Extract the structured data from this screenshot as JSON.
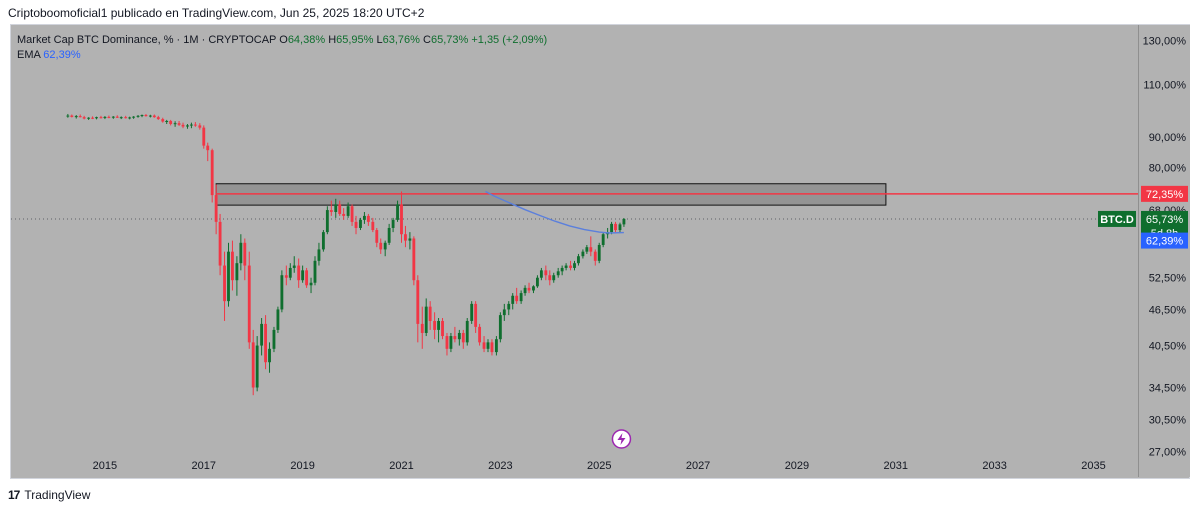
{
  "caption": "Criptoboomoficial1 publicado en TradingView.com, Jun 25, 2025 18:20 UTC+2",
  "legend": {
    "symbol": "Market Cap BTC Dominance, % · 1M · CRYPTOCAP",
    "o_label": "O",
    "o_value": "64,38%",
    "h_label": "H",
    "h_value": "65,95%",
    "l_label": "L",
    "l_value": "63,76%",
    "c_label": "C",
    "c_value": "65,73%",
    "change": "+1,35 (+2,09%)",
    "ema_label": "EMA",
    "ema_value": "62,39%"
  },
  "logo_text": "TradingView",
  "colors": {
    "background": "#b2b2b2",
    "up": "#0f6e2e",
    "down": "#f23645",
    "ema": "#5b7fdc",
    "resistance_line": "#f23645",
    "ema_badge": "#2962ff"
  },
  "badges": {
    "resistance": "72,35%",
    "symbol": "BTC.D",
    "price": "65,73%",
    "countdown": "5d 8h",
    "ema": "62,39%"
  },
  "chart_data": {
    "type": "candlestick",
    "title": "Market Cap BTC Dominance, % · 1M · CRYPTOCAP",
    "x_ticks": [
      "2015",
      "2017",
      "2019",
      "2021",
      "2023",
      "2025",
      "2027",
      "2029",
      "2031",
      "2033",
      "2035"
    ],
    "y_ticks": [
      "130,00%",
      "110,00%",
      "90,00%",
      "80,00%",
      "68,00%",
      "52,50%",
      "46,50%",
      "40,50%",
      "34,50%",
      "30,50%",
      "27,00%"
    ],
    "y_tick_values": [
      130,
      110,
      90,
      80,
      68,
      52.5,
      46.5,
      40.5,
      34.5,
      30.5,
      27
    ],
    "y_scale": "log",
    "xlim": [
      2013.1,
      2035.9
    ],
    "ylim": [
      24.5,
      138
    ],
    "resistance_zone": {
      "x_start": 2017.25,
      "x_end": 2030.8,
      "y_low": 69.3,
      "y_high": 75.2
    },
    "resistance_level": 72.35,
    "last_price": 65.73,
    "series": [
      {
        "name": "BTC.D",
        "candles": [
          [
            2014.25,
            97.5,
            98.2,
            96.8,
            97.6
          ],
          [
            2014.33,
            97.6,
            98.0,
            96.9,
            97.1
          ],
          [
            2014.42,
            97.1,
            97.8,
            96.5,
            97.4
          ],
          [
            2014.5,
            97.4,
            98.0,
            96.9,
            97.0
          ],
          [
            2014.58,
            97.0,
            97.5,
            96.2,
            96.5
          ],
          [
            2014.67,
            96.5,
            97.0,
            96.0,
            96.8
          ],
          [
            2014.75,
            96.8,
            97.3,
            96.3,
            96.6
          ],
          [
            2014.83,
            96.6,
            97.2,
            96.2,
            97.0
          ],
          [
            2014.92,
            97.0,
            97.5,
            96.5,
            96.8
          ],
          [
            2015.0,
            96.8,
            97.4,
            96.3,
            97.1
          ],
          [
            2015.08,
            97.1,
            97.6,
            96.6,
            96.9
          ],
          [
            2015.17,
            96.9,
            97.4,
            96.4,
            97.2
          ],
          [
            2015.25,
            97.2,
            97.7,
            96.7,
            96.8
          ],
          [
            2015.33,
            96.8,
            97.3,
            96.3,
            97.0
          ],
          [
            2015.42,
            97.0,
            97.5,
            96.5,
            96.7
          ],
          [
            2015.5,
            96.7,
            97.2,
            96.2,
            96.9
          ],
          [
            2015.58,
            96.9,
            97.4,
            96.4,
            97.2
          ],
          [
            2015.67,
            97.2,
            97.8,
            96.8,
            97.5
          ],
          [
            2015.75,
            97.5,
            98.0,
            97.0,
            97.8
          ],
          [
            2015.83,
            97.8,
            98.2,
            97.2,
            97.4
          ],
          [
            2015.92,
            97.4,
            97.9,
            96.9,
            97.6
          ],
          [
            2016.0,
            97.6,
            98.0,
            96.8,
            97.0
          ],
          [
            2016.08,
            97.0,
            97.5,
            96.0,
            96.3
          ],
          [
            2016.17,
            96.3,
            96.8,
            95.0,
            95.4
          ],
          [
            2016.25,
            95.4,
            96.0,
            94.5,
            95.6
          ],
          [
            2016.33,
            95.6,
            96.0,
            94.0,
            94.5
          ],
          [
            2016.42,
            94.5,
            95.5,
            93.5,
            94.8
          ],
          [
            2016.5,
            94.8,
            95.6,
            93.8,
            94.2
          ],
          [
            2016.58,
            94.2,
            95.0,
            93.0,
            93.6
          ],
          [
            2016.67,
            93.6,
            94.5,
            92.8,
            94.0
          ],
          [
            2016.75,
            94.0,
            95.0,
            93.0,
            94.3
          ],
          [
            2016.83,
            94.3,
            95.2,
            93.5,
            94.0
          ],
          [
            2016.92,
            94.0,
            94.8,
            92.5,
            93.2
          ],
          [
            2017.0,
            93.2,
            94.0,
            86.0,
            87.0
          ],
          [
            2017.08,
            87.0,
            88.0,
            82.0,
            85.5
          ],
          [
            2017.17,
            85.5,
            86.0,
            70.0,
            72.0
          ],
          [
            2017.25,
            72.0,
            75.0,
            62.0,
            65.0
          ],
          [
            2017.33,
            65.0,
            67.0,
            53.0,
            55.0
          ],
          [
            2017.42,
            55.0,
            58.0,
            44.5,
            48.0
          ],
          [
            2017.5,
            48.0,
            60.0,
            47.0,
            58.0
          ],
          [
            2017.58,
            58.0,
            60.5,
            50.0,
            52.0
          ],
          [
            2017.67,
            52.0,
            57.0,
            49.0,
            55.5
          ],
          [
            2017.75,
            55.5,
            62.0,
            54.0,
            60.0
          ],
          [
            2017.83,
            60.0,
            61.0,
            52.0,
            55.0
          ],
          [
            2017.92,
            55.0,
            58.0,
            40.0,
            41.0
          ],
          [
            2018.0,
            41.0,
            43.0,
            33.5,
            34.5
          ],
          [
            2018.08,
            34.5,
            42.0,
            34.0,
            40.5
          ],
          [
            2018.17,
            40.5,
            45.0,
            39.0,
            44.0
          ],
          [
            2018.25,
            44.0,
            45.5,
            37.0,
            38.0
          ],
          [
            2018.33,
            38.0,
            41.0,
            36.5,
            40.0
          ],
          [
            2018.42,
            40.0,
            43.5,
            39.5,
            43.0
          ],
          [
            2018.5,
            43.0,
            47.0,
            42.5,
            46.5
          ],
          [
            2018.58,
            46.5,
            54.0,
            46.0,
            53.0
          ],
          [
            2018.67,
            53.0,
            55.0,
            51.0,
            52.5
          ],
          [
            2018.75,
            52.5,
            55.5,
            52.0,
            54.5
          ],
          [
            2018.83,
            54.5,
            57.0,
            53.5,
            55.0
          ],
          [
            2018.92,
            55.0,
            56.5,
            50.5,
            52.0
          ],
          [
            2019.0,
            52.0,
            55.0,
            51.5,
            54.0
          ],
          [
            2019.08,
            54.0,
            54.5,
            50.5,
            51.0
          ],
          [
            2019.17,
            51.0,
            52.5,
            49.5,
            51.5
          ],
          [
            2019.25,
            51.5,
            57.0,
            51.0,
            56.0
          ],
          [
            2019.33,
            56.0,
            60.0,
            55.0,
            58.5
          ],
          [
            2019.42,
            58.5,
            63.0,
            58.0,
            62.5
          ],
          [
            2019.5,
            62.5,
            69.0,
            62.0,
            68.0
          ],
          [
            2019.58,
            68.0,
            70.5,
            66.5,
            67.5
          ],
          [
            2019.67,
            67.5,
            71.0,
            66.0,
            69.5
          ],
          [
            2019.75,
            69.5,
            70.5,
            66.5,
            67.0
          ],
          [
            2019.83,
            67.0,
            68.5,
            65.5,
            66.5
          ],
          [
            2019.92,
            66.5,
            70.0,
            66.0,
            69.0
          ],
          [
            2020.0,
            69.0,
            69.5,
            64.0,
            65.0
          ],
          [
            2020.08,
            65.0,
            66.5,
            62.0,
            63.5
          ],
          [
            2020.17,
            63.5,
            66.0,
            63.0,
            65.5
          ],
          [
            2020.25,
            65.5,
            67.5,
            64.5,
            66.5
          ],
          [
            2020.33,
            66.5,
            67.0,
            64.0,
            65.0
          ],
          [
            2020.42,
            65.0,
            66.0,
            62.5,
            63.0
          ],
          [
            2020.5,
            63.0,
            63.5,
            59.0,
            60.0
          ],
          [
            2020.58,
            60.0,
            61.0,
            57.5,
            58.5
          ],
          [
            2020.67,
            58.5,
            60.5,
            57.0,
            60.0
          ],
          [
            2020.75,
            60.0,
            64.5,
            59.5,
            63.5
          ],
          [
            2020.83,
            63.5,
            66.0,
            62.5,
            65.5
          ],
          [
            2020.92,
            65.5,
            70.5,
            65.0,
            69.5
          ],
          [
            2021.0,
            69.5,
            73.0,
            60.0,
            62.0
          ],
          [
            2021.08,
            62.0,
            64.0,
            59.0,
            60.5
          ],
          [
            2021.17,
            60.5,
            62.5,
            58.5,
            61.0
          ],
          [
            2021.25,
            61.0,
            61.5,
            51.0,
            52.0
          ],
          [
            2021.33,
            52.0,
            53.0,
            41.0,
            44.0
          ],
          [
            2021.42,
            44.0,
            47.0,
            40.0,
            42.5
          ],
          [
            2021.5,
            42.5,
            48.5,
            42.0,
            47.0
          ],
          [
            2021.58,
            47.0,
            48.0,
            43.0,
            44.5
          ],
          [
            2021.67,
            44.5,
            46.0,
            41.5,
            43.0
          ],
          [
            2021.75,
            43.0,
            45.0,
            41.0,
            44.5
          ],
          [
            2021.83,
            44.5,
            45.0,
            41.5,
            42.0
          ],
          [
            2021.92,
            42.0,
            42.5,
            39.0,
            40.0
          ],
          [
            2022.0,
            40.0,
            42.5,
            39.5,
            42.0
          ],
          [
            2022.08,
            42.0,
            43.5,
            41.0,
            41.5
          ],
          [
            2022.17,
            41.5,
            43.0,
            40.5,
            42.5
          ],
          [
            2022.25,
            42.5,
            43.0,
            40.0,
            41.0
          ],
          [
            2022.33,
            41.0,
            45.0,
            40.5,
            44.5
          ],
          [
            2022.42,
            44.5,
            48.0,
            44.0,
            47.5
          ],
          [
            2022.5,
            47.5,
            48.0,
            42.5,
            43.5
          ],
          [
            2022.58,
            43.5,
            44.0,
            40.5,
            41.0
          ],
          [
            2022.67,
            41.0,
            42.0,
            39.5,
            40.0
          ],
          [
            2022.75,
            40.0,
            41.5,
            39.5,
            41.0
          ],
          [
            2022.83,
            41.0,
            41.5,
            39.0,
            39.5
          ],
          [
            2022.92,
            39.5,
            42.0,
            39.0,
            41.5
          ],
          [
            2023.0,
            41.5,
            46.0,
            41.0,
            45.5
          ],
          [
            2023.08,
            45.5,
            47.5,
            44.5,
            46.5
          ],
          [
            2023.17,
            46.5,
            48.0,
            45.5,
            47.5
          ],
          [
            2023.25,
            47.5,
            49.5,
            46.5,
            49.0
          ],
          [
            2023.33,
            49.0,
            50.5,
            47.5,
            48.0
          ],
          [
            2023.42,
            48.0,
            50.0,
            47.5,
            49.5
          ],
          [
            2023.5,
            49.5,
            51.0,
            49.0,
            50.5
          ],
          [
            2023.58,
            50.5,
            51.5,
            49.5,
            50.0
          ],
          [
            2023.67,
            50.0,
            51.0,
            49.5,
            50.8
          ],
          [
            2023.75,
            50.8,
            53.0,
            50.5,
            52.5
          ],
          [
            2023.83,
            52.5,
            54.5,
            52.0,
            54.0
          ],
          [
            2023.92,
            54.0,
            55.0,
            52.0,
            53.0
          ],
          [
            2024.0,
            53.0,
            54.0,
            51.0,
            52.0
          ],
          [
            2024.08,
            52.0,
            53.5,
            51.5,
            53.0
          ],
          [
            2024.17,
            53.0,
            54.5,
            52.5,
            53.8
          ],
          [
            2024.25,
            53.8,
            55.0,
            53.0,
            54.5
          ],
          [
            2024.33,
            54.5,
            55.5,
            54.0,
            55.0
          ],
          [
            2024.42,
            55.0,
            56.0,
            54.0,
            54.5
          ],
          [
            2024.5,
            54.5,
            56.0,
            54.0,
            55.5
          ],
          [
            2024.58,
            55.5,
            57.5,
            55.0,
            57.0
          ],
          [
            2024.67,
            57.0,
            58.5,
            56.5,
            58.0
          ],
          [
            2024.75,
            58.0,
            59.5,
            57.5,
            59.0
          ],
          [
            2024.83,
            59.0,
            61.5,
            57.0,
            58.0
          ],
          [
            2024.92,
            58.0,
            58.5,
            55.0,
            56.0
          ],
          [
            2025.0,
            56.0,
            60.0,
            55.5,
            59.5
          ],
          [
            2025.08,
            59.5,
            62.5,
            59.0,
            62.0
          ],
          [
            2025.17,
            62.0,
            63.5,
            61.0,
            62.5
          ],
          [
            2025.25,
            62.5,
            65.0,
            62.0,
            64.5
          ],
          [
            2025.33,
            64.5,
            65.0,
            62.5,
            63.0
          ],
          [
            2025.42,
            63.0,
            64.8,
            62.5,
            64.38
          ],
          [
            2025.5,
            64.38,
            65.95,
            63.76,
            65.73
          ]
        ]
      },
      {
        "name": "EMA",
        "points": [
          [
            2022.7,
            73.0
          ],
          [
            2022.9,
            71.6
          ],
          [
            2023.2,
            69.8
          ],
          [
            2023.5,
            68.1
          ],
          [
            2023.8,
            66.6
          ],
          [
            2024.1,
            65.2
          ],
          [
            2024.4,
            64.0
          ],
          [
            2024.7,
            63.1
          ],
          [
            2025.0,
            62.5
          ],
          [
            2025.2,
            62.3
          ],
          [
            2025.5,
            62.39
          ]
        ]
      }
    ]
  }
}
